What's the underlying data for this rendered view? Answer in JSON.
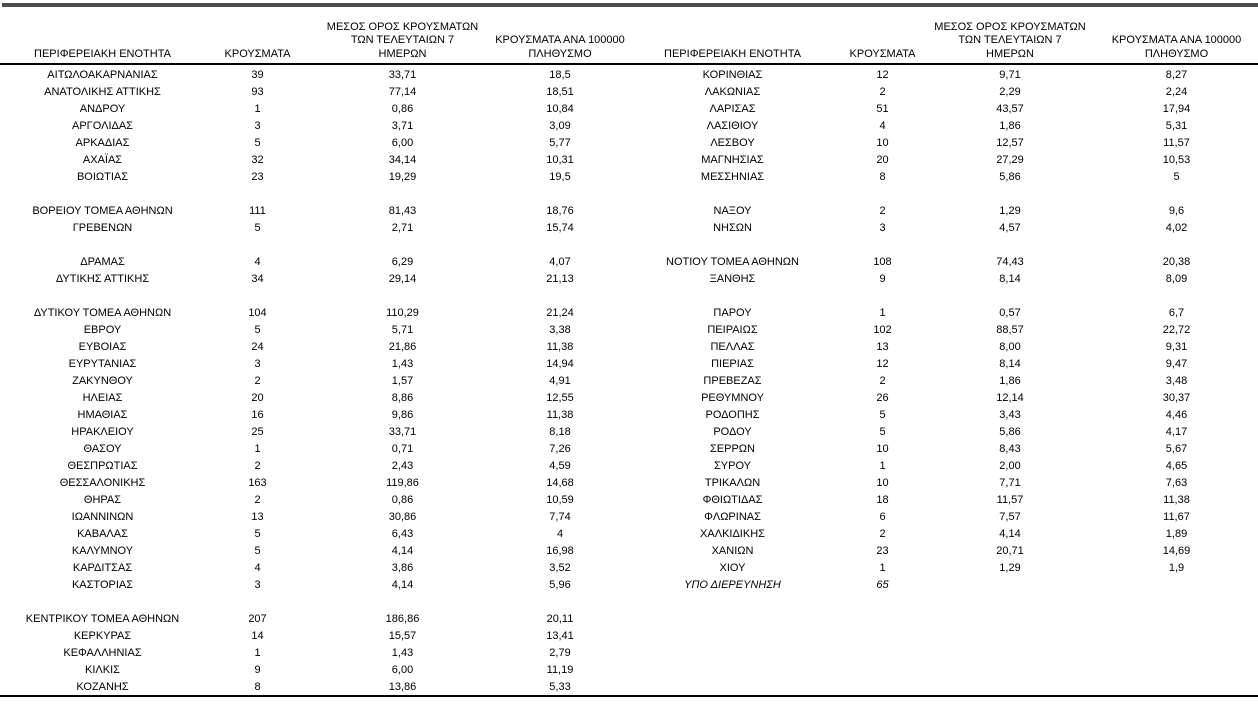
{
  "colors": {
    "top_rule": "#4d4d4d",
    "table_rules": "#000000",
    "text": "#000000",
    "background": "#ffffff"
  },
  "table": {
    "headers": {
      "region": "ΠΕΡΙΦΕΡΕΙΑΚΗ ΕΝΟΤΗΤΑ",
      "cases": "ΚΡΟΥΣΜΑΤΑ",
      "avg7_line1": "ΜΕΣΟΣ ΟΡΟΣ ΚΡΟΥΣΜΑΤΩΝ",
      "avg7_line2": "ΤΩΝ ΤΕΛΕΥΤΑΙΩΝ 7",
      "avg7_line3": "ΗΜΕΡΩΝ",
      "per100k_line1": "ΚΡΟΥΣΜΑΤΑ ΑΝΑ 100000",
      "per100k_line2": "ΠΛΗΘΥΣΜΟ"
    },
    "left_rows": [
      {
        "region": "ΑΙΤΩΛΟΑΚΑΡΝΑΝΙΑΣ",
        "cases": "39",
        "avg7": "33,71",
        "per100k": "18,5"
      },
      {
        "region": "ΑΝΑΤΟΛΙΚΗΣ ΑΤΤΙΚΗΣ",
        "cases": "93",
        "avg7": "77,14",
        "per100k": "18,51"
      },
      {
        "region": "ΑΝΔΡΟΥ",
        "cases": "1",
        "avg7": "0,86",
        "per100k": "10,84"
      },
      {
        "region": "ΑΡΓΟΛΙΔΑΣ",
        "cases": "3",
        "avg7": "3,71",
        "per100k": "3,09"
      },
      {
        "region": "ΑΡΚΑΔΙΑΣ",
        "cases": "5",
        "avg7": "6,00",
        "per100k": "5,77"
      },
      {
        "region": "ΑΧΑΪΑΣ",
        "cases": "32",
        "avg7": "34,14",
        "per100k": "10,31"
      },
      {
        "region": "ΒΟΙΩΤΙΑΣ",
        "cases": "23",
        "avg7": "19,29",
        "per100k": "19,5"
      },
      null,
      {
        "region": "ΒΟΡΕΙΟΥ ΤΟΜΕΑ ΑΘΗΝΩΝ",
        "cases": "111",
        "avg7": "81,43",
        "per100k": "18,76"
      },
      {
        "region": "ΓΡΕΒΕΝΩΝ",
        "cases": "5",
        "avg7": "2,71",
        "per100k": "15,74"
      },
      null,
      {
        "region": "ΔΡΑΜΑΣ",
        "cases": "4",
        "avg7": "6,29",
        "per100k": "4,07"
      },
      {
        "region": "ΔΥΤΙΚΗΣ ΑΤΤΙΚΗΣ",
        "cases": "34",
        "avg7": "29,14",
        "per100k": "21,13"
      },
      null,
      {
        "region": "ΔΥΤΙΚΟΥ ΤΟΜΕΑ ΑΘΗΝΩΝ",
        "cases": "104",
        "avg7": "110,29",
        "per100k": "21,24"
      },
      {
        "region": "ΕΒΡΟΥ",
        "cases": "5",
        "avg7": "5,71",
        "per100k": "3,38"
      },
      {
        "region": "ΕΥΒΟΙΑΣ",
        "cases": "24",
        "avg7": "21,86",
        "per100k": "11,38"
      },
      {
        "region": "ΕΥΡΥΤΑΝΙΑΣ",
        "cases": "3",
        "avg7": "1,43",
        "per100k": "14,94"
      },
      {
        "region": "ΖΑΚΥΝΘΟΥ",
        "cases": "2",
        "avg7": "1,57",
        "per100k": "4,91"
      },
      {
        "region": "ΗΛΕΙΑΣ",
        "cases": "20",
        "avg7": "8,86",
        "per100k": "12,55"
      },
      {
        "region": "ΗΜΑΘΙΑΣ",
        "cases": "16",
        "avg7": "9,86",
        "per100k": "11,38"
      },
      {
        "region": "ΗΡΑΚΛΕΙΟΥ",
        "cases": "25",
        "avg7": "33,71",
        "per100k": "8,18"
      },
      {
        "region": "ΘΑΣΟΥ",
        "cases": "1",
        "avg7": "0,71",
        "per100k": "7,26"
      },
      {
        "region": "ΘΕΣΠΡΩΤΙΑΣ",
        "cases": "2",
        "avg7": "2,43",
        "per100k": "4,59"
      },
      {
        "region": "ΘΕΣΣΑΛΟΝΙΚΗΣ",
        "cases": "163",
        "avg7": "119,86",
        "per100k": "14,68"
      },
      {
        "region": "ΘΗΡΑΣ",
        "cases": "2",
        "avg7": "0,86",
        "per100k": "10,59"
      },
      {
        "region": "ΙΩΑΝΝΙΝΩΝ",
        "cases": "13",
        "avg7": "30,86",
        "per100k": "7,74"
      },
      {
        "region": "ΚΑΒΑΛΑΣ",
        "cases": "5",
        "avg7": "6,43",
        "per100k": "4"
      },
      {
        "region": "ΚΑΛΥΜΝΟΥ",
        "cases": "5",
        "avg7": "4,14",
        "per100k": "16,98"
      },
      {
        "region": "ΚΑΡΔΙΤΣΑΣ",
        "cases": "4",
        "avg7": "3,86",
        "per100k": "3,52"
      },
      {
        "region": "ΚΑΣΤΟΡΙΑΣ",
        "cases": "3",
        "avg7": "4,14",
        "per100k": "5,96"
      },
      null,
      {
        "region": "ΚΕΝΤΡΙΚΟΥ ΤΟΜΕΑ ΑΘΗΝΩΝ",
        "cases": "207",
        "avg7": "186,86",
        "per100k": "20,11"
      },
      {
        "region": "ΚΕΡΚΥΡΑΣ",
        "cases": "14",
        "avg7": "15,57",
        "per100k": "13,41"
      },
      {
        "region": "ΚΕΦΑΛΛΗΝΙΑΣ",
        "cases": "1",
        "avg7": "1,43",
        "per100k": "2,79"
      },
      {
        "region": "ΚΙΛΚΙΣ",
        "cases": "9",
        "avg7": "6,00",
        "per100k": "11,19"
      },
      {
        "region": "ΚΟΖΑΝΗΣ",
        "cases": "8",
        "avg7": "13,86",
        "per100k": "5,33"
      }
    ],
    "right_rows": [
      {
        "region": "ΚΟΡΙΝΘΙΑΣ",
        "cases": "12",
        "avg7": "9,71",
        "per100k": "8,27"
      },
      {
        "region": "ΛΑΚΩΝΙΑΣ",
        "cases": "2",
        "avg7": "2,29",
        "per100k": "2,24"
      },
      {
        "region": "ΛΑΡΙΣΑΣ",
        "cases": "51",
        "avg7": "43,57",
        "per100k": "17,94"
      },
      {
        "region": "ΛΑΣΙΘΙΟΥ",
        "cases": "4",
        "avg7": "1,86",
        "per100k": "5,31"
      },
      {
        "region": "ΛΕΣΒΟΥ",
        "cases": "10",
        "avg7": "12,57",
        "per100k": "11,57"
      },
      {
        "region": "ΜΑΓΝΗΣΙΑΣ",
        "cases": "20",
        "avg7": "27,29",
        "per100k": "10,53"
      },
      {
        "region": "ΜΕΣΣΗΝΙΑΣ",
        "cases": "8",
        "avg7": "5,86",
        "per100k": "5"
      },
      null,
      {
        "region": "ΝΑΞΟΥ",
        "cases": "2",
        "avg7": "1,29",
        "per100k": "9,6"
      },
      {
        "region": "ΝΗΣΩΝ",
        "cases": "3",
        "avg7": "4,57",
        "per100k": "4,02"
      },
      null,
      {
        "region": "ΝΟΤΙΟΥ ΤΟΜΕΑ ΑΘΗΝΩΝ",
        "cases": "108",
        "avg7": "74,43",
        "per100k": "20,38"
      },
      {
        "region": "ΞΑΝΘΗΣ",
        "cases": "9",
        "avg7": "8,14",
        "per100k": "8,09"
      },
      null,
      {
        "region": "ΠΑΡΟΥ",
        "cases": "1",
        "avg7": "0,57",
        "per100k": "6,7"
      },
      {
        "region": "ΠΕΙΡΑΙΩΣ",
        "cases": "102",
        "avg7": "88,57",
        "per100k": "22,72"
      },
      {
        "region": "ΠΕΛΛΑΣ",
        "cases": "13",
        "avg7": "8,00",
        "per100k": "9,31"
      },
      {
        "region": "ΠΙΕΡΙΑΣ",
        "cases": "12",
        "avg7": "8,14",
        "per100k": "9,47"
      },
      {
        "region": "ΠΡΕΒΕΖΑΣ",
        "cases": "2",
        "avg7": "1,86",
        "per100k": "3,48"
      },
      {
        "region": "ΡΕΘΥΜΝΟΥ",
        "cases": "26",
        "avg7": "12,14",
        "per100k": "30,37"
      },
      {
        "region": "ΡΟΔΟΠΗΣ",
        "cases": "5",
        "avg7": "3,43",
        "per100k": "4,46"
      },
      {
        "region": "ΡΟΔΟΥ",
        "cases": "5",
        "avg7": "5,86",
        "per100k": "4,17"
      },
      {
        "region": "ΣΕΡΡΩΝ",
        "cases": "10",
        "avg7": "8,43",
        "per100k": "5,67"
      },
      {
        "region": "ΣΥΡΟΥ",
        "cases": "1",
        "avg7": "2,00",
        "per100k": "4,65"
      },
      {
        "region": "ΤΡΙΚΑΛΩΝ",
        "cases": "10",
        "avg7": "7,71",
        "per100k": "7,63"
      },
      {
        "region": "ΦΘΙΩΤΙΔΑΣ",
        "cases": "18",
        "avg7": "11,57",
        "per100k": "11,38"
      },
      {
        "region": "ΦΛΩΡΙΝΑΣ",
        "cases": "6",
        "avg7": "7,57",
        "per100k": "11,67"
      },
      {
        "region": "ΧΑΛΚΙΔΙΚΗΣ",
        "cases": "2",
        "avg7": "4,14",
        "per100k": "1,89"
      },
      {
        "region": "ΧΑΝΙΩΝ",
        "cases": "23",
        "avg7": "20,71",
        "per100k": "14,69"
      },
      {
        "region": "ΧΙΟΥ",
        "cases": "1",
        "avg7": "1,29",
        "per100k": "1,9"
      },
      {
        "region": "ΥΠΟ ΔΙΕΡΕΥΝΗΣΗ",
        "cases": "65",
        "avg7": "",
        "per100k": "",
        "italic": true
      }
    ]
  }
}
